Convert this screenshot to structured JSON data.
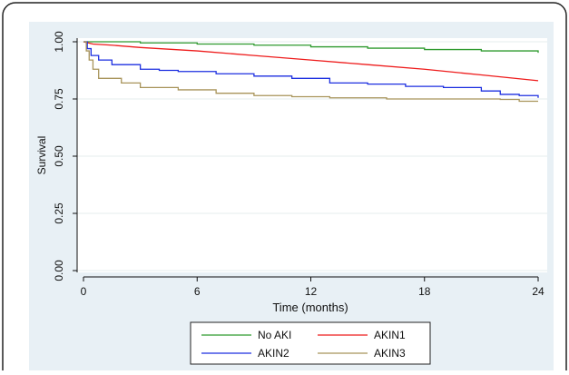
{
  "chart_data": {
    "type": "line",
    "step": true,
    "xlabel": "Time (months)",
    "ylabel": "Survival",
    "xlim": [
      0,
      24
    ],
    "ylim": [
      0,
      1
    ],
    "x_ticks": [
      0,
      6,
      12,
      18,
      24
    ],
    "x_tick_labels": [
      "0",
      "6",
      "12",
      "18",
      "24"
    ],
    "y_ticks": [
      0,
      0.25,
      0.5,
      0.75,
      1
    ],
    "y_tick_labels": [
      "0.00",
      "0.25",
      "0.50",
      "0.75",
      "1.00"
    ],
    "grid": true,
    "legend_position": "bottom",
    "colors": {
      "No AKI": "#2e9a2e",
      "AKIN1": "#ee1c1c",
      "AKIN2": "#1c2fe0",
      "AKIN3": "#a8945a",
      "panel_background": "#e8f0f5",
      "grid": "#e6ecee"
    },
    "series": [
      {
        "name": "No AKI",
        "x": [
          0,
          3,
          6,
          9,
          12,
          15,
          18,
          21,
          24
        ],
        "y": [
          1.0,
          0.995,
          0.99,
          0.985,
          0.978,
          0.972,
          0.966,
          0.96,
          0.952
        ]
      },
      {
        "name": "AKIN1",
        "x": [
          0,
          0.5,
          1.5,
          3,
          6,
          9,
          12,
          15,
          18,
          21,
          24
        ],
        "y": [
          1.0,
          0.99,
          0.985,
          0.975,
          0.96,
          0.94,
          0.92,
          0.9,
          0.88,
          0.855,
          0.83
        ],
        "step": false
      },
      {
        "name": "AKIN2",
        "x": [
          0,
          0.2,
          0.4,
          0.8,
          1.5,
          3,
          4,
          5,
          7,
          9,
          11,
          13,
          15,
          17,
          19,
          21,
          22,
          23,
          24
        ],
        "y": [
          1.0,
          0.97,
          0.94,
          0.92,
          0.9,
          0.88,
          0.875,
          0.87,
          0.86,
          0.85,
          0.84,
          0.82,
          0.815,
          0.805,
          0.8,
          0.785,
          0.77,
          0.765,
          0.755
        ]
      },
      {
        "name": "AKIN3",
        "x": [
          0,
          0.15,
          0.3,
          0.5,
          0.8,
          2,
          3,
          5,
          7,
          9,
          11,
          13,
          16,
          19,
          22,
          23,
          24
        ],
        "y": [
          1.0,
          0.96,
          0.92,
          0.88,
          0.84,
          0.82,
          0.8,
          0.79,
          0.775,
          0.765,
          0.76,
          0.755,
          0.75,
          0.75,
          0.748,
          0.74,
          0.74
        ]
      }
    ],
    "legend": {
      "items": [
        "No AKI",
        "AKIN1",
        "AKIN2",
        "AKIN3"
      ]
    }
  }
}
